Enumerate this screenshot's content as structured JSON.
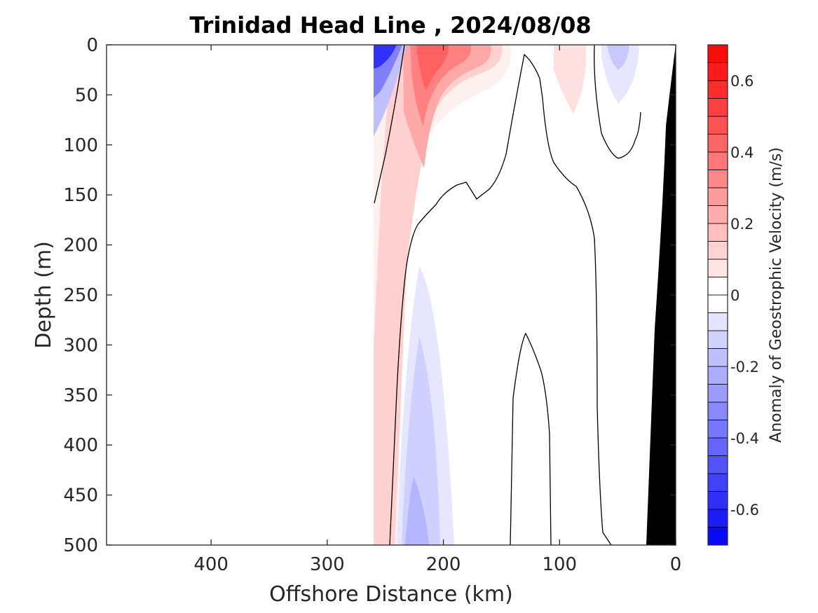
{
  "chart_data": {
    "type": "contour",
    "title": "Trinidad Head Line , 2024/08/08",
    "xlabel": "Offshore Distance (km)",
    "ylabel": "Depth (m)",
    "xlim": [
      490,
      0
    ],
    "ylim": [
      500,
      0
    ],
    "x_reversed": true,
    "y_reversed": true,
    "xticks": [
      400,
      300,
      200,
      100,
      0
    ],
    "xtick_labels": [
      "400",
      "300",
      "200",
      "100",
      "0"
    ],
    "yticks": [
      0,
      50,
      100,
      150,
      200,
      250,
      300,
      350,
      400,
      450,
      500
    ],
    "ytick_labels": [
      "0",
      "50",
      "100",
      "150",
      "200",
      "250",
      "300",
      "350",
      "400",
      "450",
      "500"
    ],
    "colorbar": {
      "label": "Anomaly of Geostrophic Velocity (m/s)",
      "range": [
        -0.7,
        0.7
      ],
      "step": 0.05,
      "ticks": [
        0.6,
        0.4,
        0.2,
        0,
        -0.2,
        -0.4,
        -0.6
      ],
      "tick_labels": [
        "0.6",
        "0.4",
        "0.2",
        "0",
        "-0.2",
        "-0.4",
        "-0.6"
      ],
      "colormap": "blue-white-red",
      "neg_color": "#0000ff",
      "pos_color": "#ff0000"
    },
    "data_coverage_km": [
      0,
      260
    ],
    "bathymetry_color": "#000000",
    "features": [
      {
        "name": "nearshore surface negative core",
        "x_km": 256,
        "depth_m": 0,
        "value": -0.6
      },
      {
        "name": "positive jet core",
        "x_km": 220,
        "depth_m": 20,
        "value": 0.35
      },
      {
        "name": "deep negative core",
        "x_km": 225,
        "depth_m": 480,
        "value": -0.15
      },
      {
        "name": "surface positive patch",
        "x_km": 90,
        "depth_m": 20,
        "value": 0.1
      },
      {
        "name": "surface negative patch",
        "x_km": 50,
        "depth_m": 10,
        "value": -0.15
      }
    ]
  }
}
